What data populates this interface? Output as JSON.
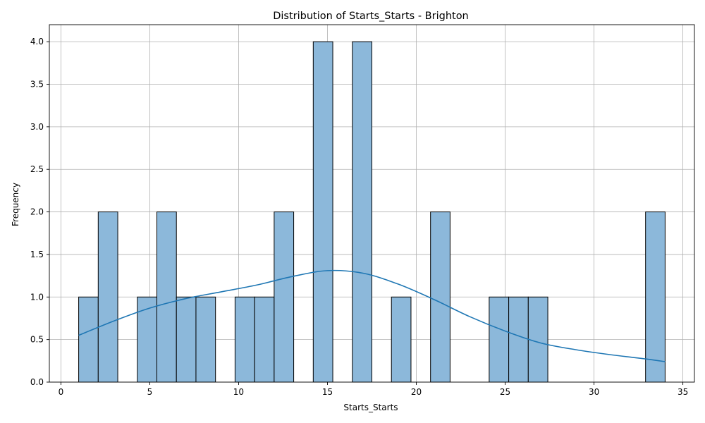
{
  "chart_data": {
    "type": "bar",
    "title": "Distribution of Starts_Starts - Brighton",
    "xlabel": "Starts_Starts",
    "ylabel": "Frequency",
    "xlim": [
      -0.65,
      35.65
    ],
    "ylim": [
      0,
      4.2
    ],
    "xticks": [
      0,
      5,
      10,
      15,
      20,
      25,
      30,
      35
    ],
    "yticks": [
      0.0,
      0.5,
      1.0,
      1.5,
      2.0,
      2.5,
      3.0,
      3.5,
      4.0
    ],
    "grid": true,
    "bin_range": [
      1,
      34
    ],
    "bin_count": 30,
    "values": [
      1,
      2,
      0,
      1,
      2,
      1,
      1,
      0,
      1,
      1,
      2,
      0,
      4,
      0,
      4,
      0,
      1,
      0,
      2,
      0,
      0,
      1,
      1,
      1,
      0,
      0,
      0,
      0,
      0,
      2
    ],
    "bar_color": "#8cb8da",
    "edge_color": "#000000",
    "kde": {
      "color": "#1f77b4",
      "x": [
        1,
        3,
        5,
        7,
        9,
        11,
        13,
        15,
        17,
        19,
        21,
        23,
        25,
        27,
        29,
        31,
        33,
        34
      ],
      "y": [
        0.55,
        0.72,
        0.87,
        0.98,
        1.06,
        1.14,
        1.24,
        1.31,
        1.28,
        1.15,
        0.97,
        0.77,
        0.6,
        0.46,
        0.38,
        0.32,
        0.27,
        0.24
      ]
    }
  }
}
